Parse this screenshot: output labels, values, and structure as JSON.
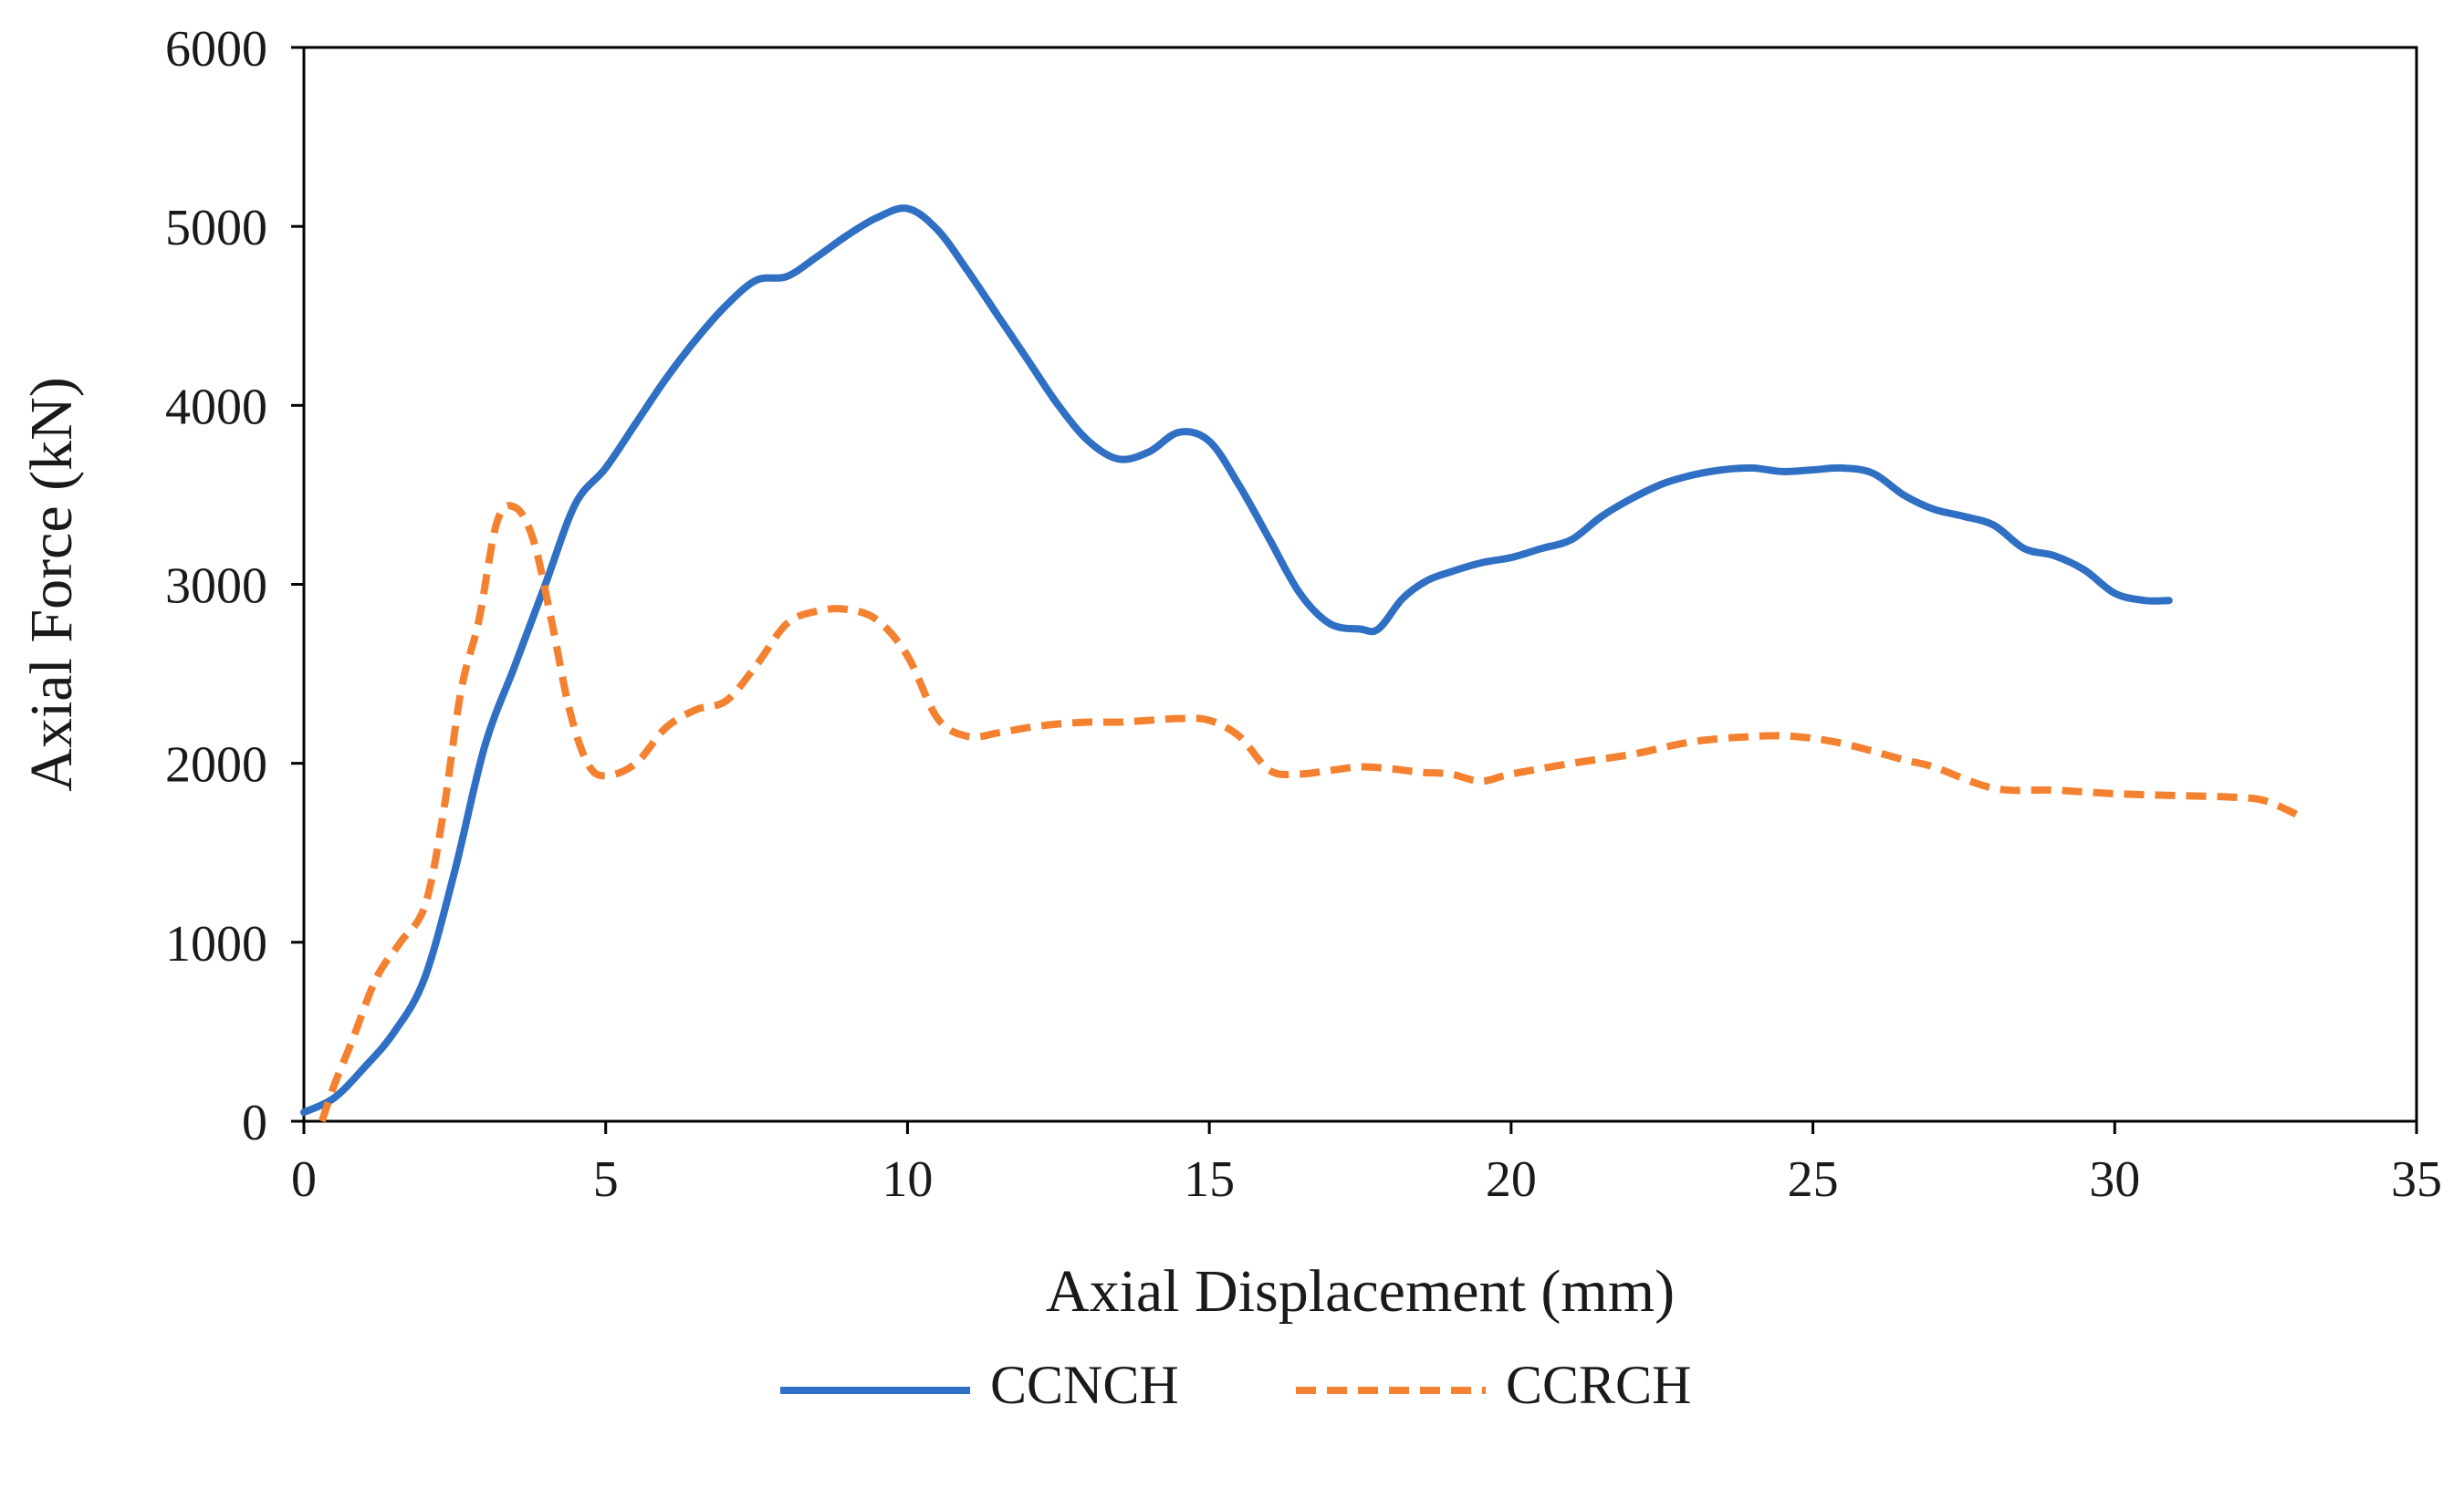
{
  "chart_data": {
    "type": "line",
    "title": "",
    "xlabel": "Axial Displacement (mm)",
    "ylabel": "Axial Force (kN)",
    "xlim": [
      0,
      35
    ],
    "ylim": [
      0,
      6000
    ],
    "xticks": [
      0,
      5,
      10,
      15,
      20,
      25,
      30,
      35
    ],
    "yticks": [
      0,
      1000,
      2000,
      3000,
      4000,
      5000,
      6000
    ],
    "grid": false,
    "legend_position": "bottom-center",
    "series": [
      {
        "name": "CCNCH",
        "color": "#2f6fc4",
        "style": "solid",
        "x": [
          0,
          0.5,
          1.0,
          1.5,
          2.0,
          2.5,
          3.0,
          3.5,
          4.0,
          4.5,
          5.0,
          5.5,
          6.0,
          6.5,
          7.0,
          7.5,
          8.0,
          8.5,
          9.0,
          9.5,
          10.0,
          10.5,
          11.0,
          11.5,
          12.0,
          12.5,
          13.0,
          13.5,
          14.0,
          14.5,
          15.0,
          15.5,
          16.0,
          16.5,
          17.0,
          17.5,
          17.8,
          18.2,
          18.6,
          19.0,
          19.5,
          20.0,
          20.5,
          21.0,
          21.5,
          22.0,
          22.5,
          23.0,
          23.5,
          24.0,
          24.5,
          25.0,
          25.5,
          26.0,
          26.5,
          27.0,
          27.5,
          28.0,
          28.5,
          29.0,
          29.5,
          30.0,
          30.5,
          30.9
        ],
        "values": [
          50,
          130,
          300,
          500,
          800,
          1400,
          2100,
          2550,
          3000,
          3450,
          3650,
          3900,
          4150,
          4370,
          4560,
          4700,
          4720,
          4830,
          4950,
          5050,
          5100,
          4980,
          4750,
          4500,
          4250,
          4000,
          3800,
          3700,
          3740,
          3850,
          3800,
          3550,
          3250,
          2950,
          2780,
          2750,
          2750,
          2920,
          3020,
          3070,
          3120,
          3150,
          3200,
          3250,
          3380,
          3480,
          3560,
          3610,
          3640,
          3650,
          3630,
          3640,
          3650,
          3620,
          3500,
          3420,
          3380,
          3330,
          3200,
          3160,
          3080,
          2950,
          2910,
          2910
        ]
      },
      {
        "name": "CCRCH",
        "color": "#f4812f",
        "style": "dashed",
        "x": [
          0.3,
          0.5,
          0.8,
          1.2,
          1.6,
          2.0,
          2.3,
          2.6,
          2.9,
          3.2,
          3.5,
          3.8,
          4.1,
          4.4,
          4.7,
          5.0,
          5.5,
          6.0,
          6.5,
          7.0,
          7.5,
          8.0,
          8.5,
          9.0,
          9.5,
          10.0,
          10.5,
          11.0,
          11.5,
          12.0,
          12.5,
          13.0,
          13.5,
          14.0,
          14.5,
          15.0,
          15.5,
          16.0,
          16.5,
          17.0,
          17.5,
          18.0,
          18.5,
          19.0,
          19.5,
          20.0,
          21.0,
          22.0,
          23.0,
          24.0,
          24.7,
          25.5,
          26.5,
          27.0,
          28.0,
          29.0,
          30.0,
          31.0,
          32.0,
          32.5,
          33.1
        ],
        "values": [
          0,
          200,
          450,
          800,
          1000,
          1200,
          1700,
          2400,
          2800,
          3350,
          3430,
          3250,
          2800,
          2300,
          2000,
          1930,
          2000,
          2200,
          2300,
          2350,
          2550,
          2780,
          2850,
          2860,
          2800,
          2600,
          2250,
          2150,
          2170,
          2200,
          2220,
          2230,
          2230,
          2240,
          2250,
          2240,
          2150,
          1960,
          1940,
          1960,
          1980,
          1970,
          1950,
          1940,
          1900,
          1940,
          2000,
          2050,
          2120,
          2150,
          2150,
          2110,
          2020,
          1980,
          1860,
          1850,
          1830,
          1820,
          1810,
          1790,
          1700
        ]
      }
    ]
  }
}
